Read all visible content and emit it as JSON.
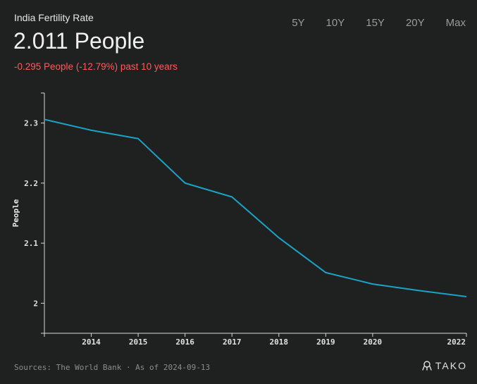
{
  "header": {
    "title": "India Fertility Rate",
    "value": "2.011 People",
    "change": "-0.295 People (-12.79%) past 10 years"
  },
  "ranges": [
    "5Y",
    "10Y",
    "15Y",
    "20Y",
    "Max"
  ],
  "footer": {
    "source": "Sources: The World Bank · As of 2024-09-13"
  },
  "brand": {
    "name": "TAKO",
    "icon": "tako-logo-icon"
  },
  "colors": {
    "background": "#1f2120",
    "line": "#1ba3c6",
    "negative": "#ff5a5a"
  },
  "chart_data": {
    "type": "line",
    "title": "",
    "xlabel": "",
    "ylabel": "People",
    "x": [
      2013,
      2014,
      2015,
      2016,
      2017,
      2018,
      2019,
      2020,
      2021,
      2022
    ],
    "series": [
      {
        "values": [
          2.306,
          2.288,
          2.274,
          2.2,
          2.177,
          2.109,
          2.051,
          2.032,
          2.021,
          2.011
        ]
      }
    ],
    "xticks": [
      2014,
      2015,
      2016,
      2017,
      2018,
      2019,
      2020,
      2022
    ],
    "xticklabels": [
      "2014",
      "2015",
      "2016",
      "2017",
      "2018",
      "2019",
      "2020",
      "2022"
    ],
    "yticks": [
      2,
      2.1,
      2.2,
      2.3
    ],
    "yticklabels": [
      "2",
      "2.1",
      "2.2",
      "2.3"
    ],
    "xlim": [
      2013,
      2022
    ],
    "ylim": [
      1.95,
      2.35
    ],
    "grid": false
  }
}
